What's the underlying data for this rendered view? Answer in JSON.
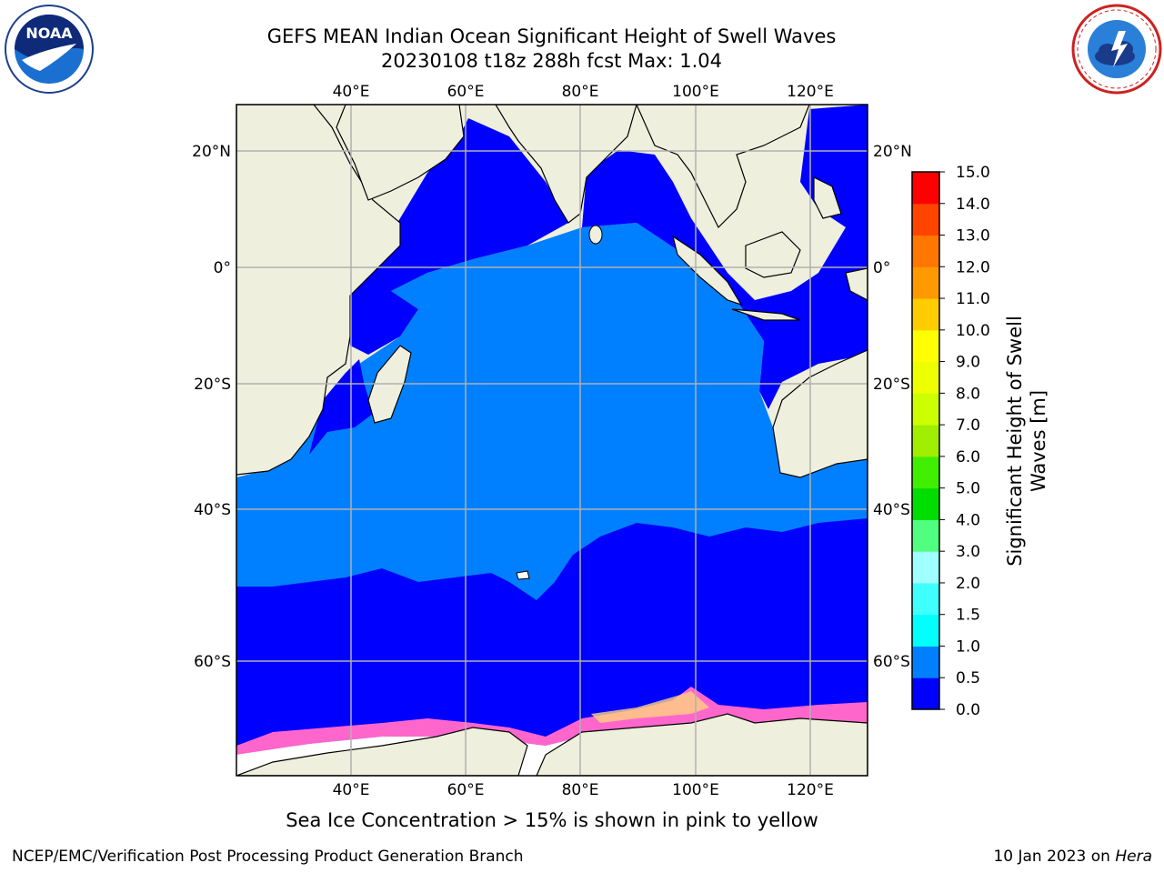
{
  "header": {
    "title_line1": "GEFS MEAN Indian Ocean Significant Height of Swell Waves",
    "title_line2": "20230108 t18z 288h fcst   Max: 1.04"
  },
  "logos": {
    "left_icon": "noaa-logo-icon",
    "right_icon": "nws-logo-icon"
  },
  "map": {
    "lon_ticks": [
      "40°E",
      "60°E",
      "80°E",
      "100°E",
      "120°E"
    ],
    "lat_ticks": [
      "20°N",
      "0°",
      "20°S",
      "40°S",
      "60°S"
    ],
    "colors": {
      "land": "#efefde",
      "ocean_low": "#0000ff",
      "ocean_mid": "#0080ff",
      "grid": "#b0b0b0",
      "ice_pink": "#ff66cc",
      "ice_yellow": "#ffd27f"
    }
  },
  "colorbar": {
    "title_line1": "Significant Height of Swell",
    "title_line2": "Waves [m]",
    "levels": [
      "0.0",
      "0.5",
      "1.0",
      "1.5",
      "2.0",
      "3.0",
      "4.0",
      "5.0",
      "6.0",
      "7.0",
      "8.0",
      "9.0",
      "10.0",
      "11.0",
      "12.0",
      "13.0",
      "14.0",
      "15.0"
    ],
    "colors": [
      "#0000ff",
      "#0080ff",
      "#00ffff",
      "#40ffff",
      "#a0ffff",
      "#50ff80",
      "#00dd00",
      "#40ee00",
      "#a0ee00",
      "#ccff00",
      "#eeff00",
      "#ffff00",
      "#ffcc00",
      "#ff9900",
      "#ff7700",
      "#ff4400",
      "#ff0000"
    ]
  },
  "caption": "Sea Ice Concentration > 15% is shown in pink to yellow",
  "footer": {
    "left": "NCEP/EMC/Verification Post Processing Product Generation Branch",
    "right_date": "10 Jan 2023 on ",
    "right_machine": "Hera"
  }
}
